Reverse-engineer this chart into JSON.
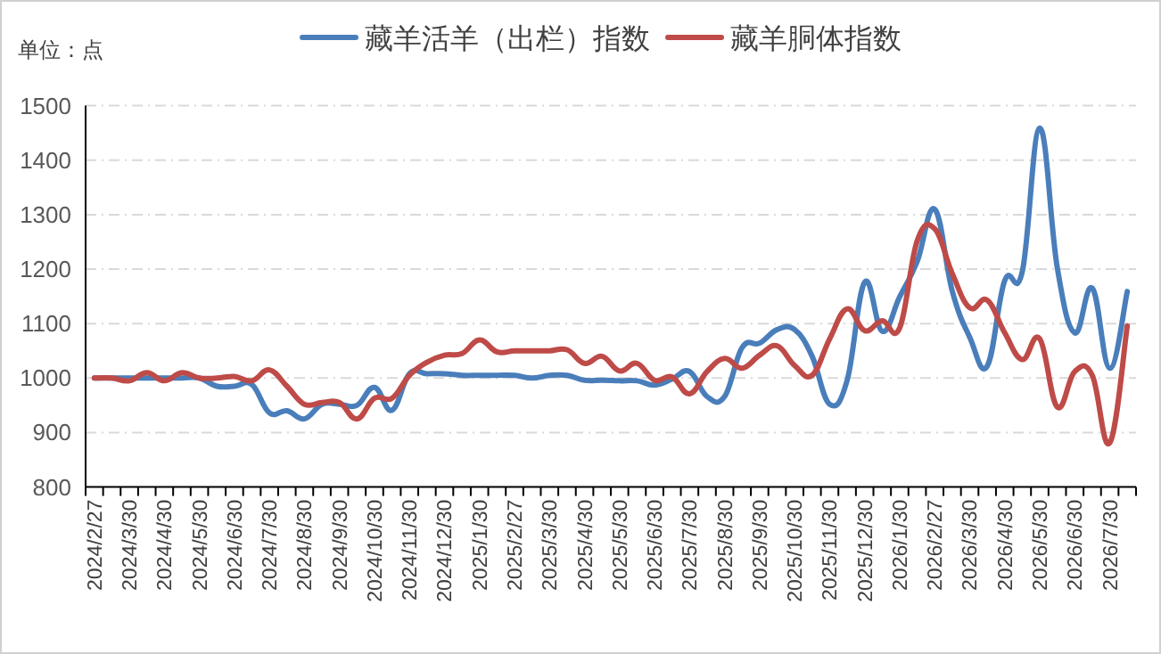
{
  "chart_data": {
    "type": "line",
    "annotations": [
      "单位：点"
    ],
    "categories": [
      "2024/2/27",
      null,
      "2024/3/30",
      null,
      "2024/4/30",
      null,
      "2024/5/30",
      null,
      "2024/6/30",
      null,
      "2024/7/30",
      null,
      "2024/8/30",
      null,
      "2024/9/30",
      null,
      "2024/10/30",
      null,
      "2024/11/30",
      null,
      "2024/12/30",
      null,
      "2025/1/30",
      null,
      "2025/2/27",
      null,
      "2025/3/30",
      null,
      "2025/4/30",
      null,
      "2025/5/30",
      null,
      "2025/6/30",
      null,
      "2025/7/30",
      null,
      "2025/8/30",
      null,
      "2025/9/30",
      null,
      "2025/10/30",
      null,
      "2025/11/30",
      null,
      "2025/12/30",
      null,
      "2026/1/30",
      null,
      "2026/2/27",
      null,
      "2026/3/30",
      null,
      "2026/4/30",
      null,
      "2026/5/30",
      null,
      "2026/6/30",
      null,
      "2026/7/30",
      null
    ],
    "series": [
      {
        "name": "藏羊活羊（出栏）指数",
        "color": "#4a7ebb",
        "values": [
          1000,
          1000,
          1000,
          1000,
          1000,
          1000,
          1000,
          985,
          985,
          988,
          936,
          940,
          925,
          952,
          952,
          950,
          983,
          941,
          1008,
          1008,
          1008,
          1005,
          1005,
          1005,
          1005,
          1000,
          1005,
          1005,
          996,
          996,
          995,
          995,
          987,
          998,
          1012,
          966,
          966,
          1056,
          1064,
          1089,
          1089,
          1040,
          952,
          996,
          1176,
          1086,
          1149,
          1214,
          1310,
          1160,
          1075,
          1022,
          1179,
          1195,
          1459,
          1203,
          1083,
          1165,
          1018,
          1159
        ]
      },
      {
        "name": "藏羊胴体指数",
        "color": "#be4b48",
        "values": [
          1000,
          1000,
          995,
          1010,
          995,
          1010,
          1000,
          1000,
          1003,
          995,
          1015,
          985,
          952,
          955,
          955,
          925,
          963,
          963,
          1005,
          1029,
          1042,
          1045,
          1070,
          1048,
          1050,
          1050,
          1050,
          1052,
          1027,
          1040,
          1013,
          1027,
          996,
          1002,
          971,
          1012,
          1036,
          1018,
          1042,
          1059,
          1023,
          1005,
          1072,
          1127,
          1087,
          1105,
          1092,
          1252,
          1274,
          1192,
          1129,
          1143,
          1083,
          1034,
          1072,
          947,
          1012,
          1005,
          881,
          1096
        ]
      }
    ],
    "ylim": [
      800,
      1500
    ],
    "yticks": [
      800,
      900,
      1000,
      1100,
      1200,
      1300,
      1400,
      1500
    ],
    "grid": "y",
    "legend": "top"
  }
}
